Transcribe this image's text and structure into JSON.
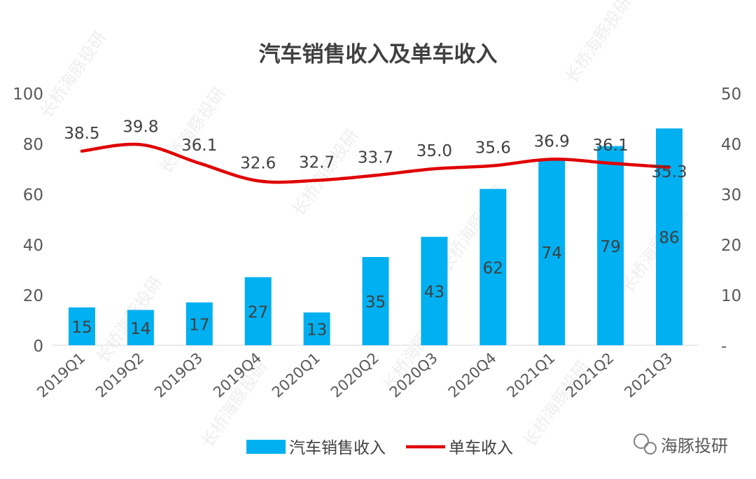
{
  "watermark": {
    "repeated_text": "长桥海豚投研",
    "brand_label": "海豚投研"
  },
  "colors": {
    "bar": "#00B0F0",
    "line": "#E00000",
    "axis_text": "#595959",
    "label_text": "#404040",
    "title_text": "#404040"
  },
  "chart_data": {
    "type": "bar",
    "title": "汽车销售收入及单车收入",
    "categories": [
      "2019Q1",
      "2019Q2",
      "2019Q3",
      "2019Q4",
      "2020Q1",
      "2020Q2",
      "2020Q3",
      "2020Q4",
      "2021Q1",
      "2021Q2",
      "2021Q3"
    ],
    "series": [
      {
        "name": "汽车销售收入",
        "type": "bar",
        "axis": "left",
        "values": [
          15,
          14,
          17,
          27,
          13,
          35,
          43,
          62,
          74,
          79,
          86
        ],
        "labels": [
          "15",
          "14",
          "17",
          "27",
          "13",
          "35",
          "43",
          "62",
          "74",
          "79",
          "86"
        ]
      },
      {
        "name": "单车收入",
        "type": "line",
        "axis": "right",
        "values": [
          38.5,
          39.8,
          36.1,
          32.6,
          32.7,
          33.7,
          35.0,
          35.6,
          36.9,
          36.1,
          35.3
        ],
        "labels": [
          "38.5",
          "39.8",
          "36.1",
          "32.6",
          "32.7",
          "33.7",
          "35.0",
          "35.6",
          "36.9",
          "36.1",
          "35.3"
        ]
      }
    ],
    "y_left": {
      "ylim": [
        0,
        100
      ],
      "ticks": [
        "0",
        "20",
        "40",
        "60",
        "80",
        "100"
      ]
    },
    "y_right": {
      "ylim": [
        0,
        50
      ],
      "ticks": [
        "-",
        "10",
        "20",
        "30",
        "40",
        "50"
      ]
    },
    "grid": false,
    "legend": "bottom"
  }
}
